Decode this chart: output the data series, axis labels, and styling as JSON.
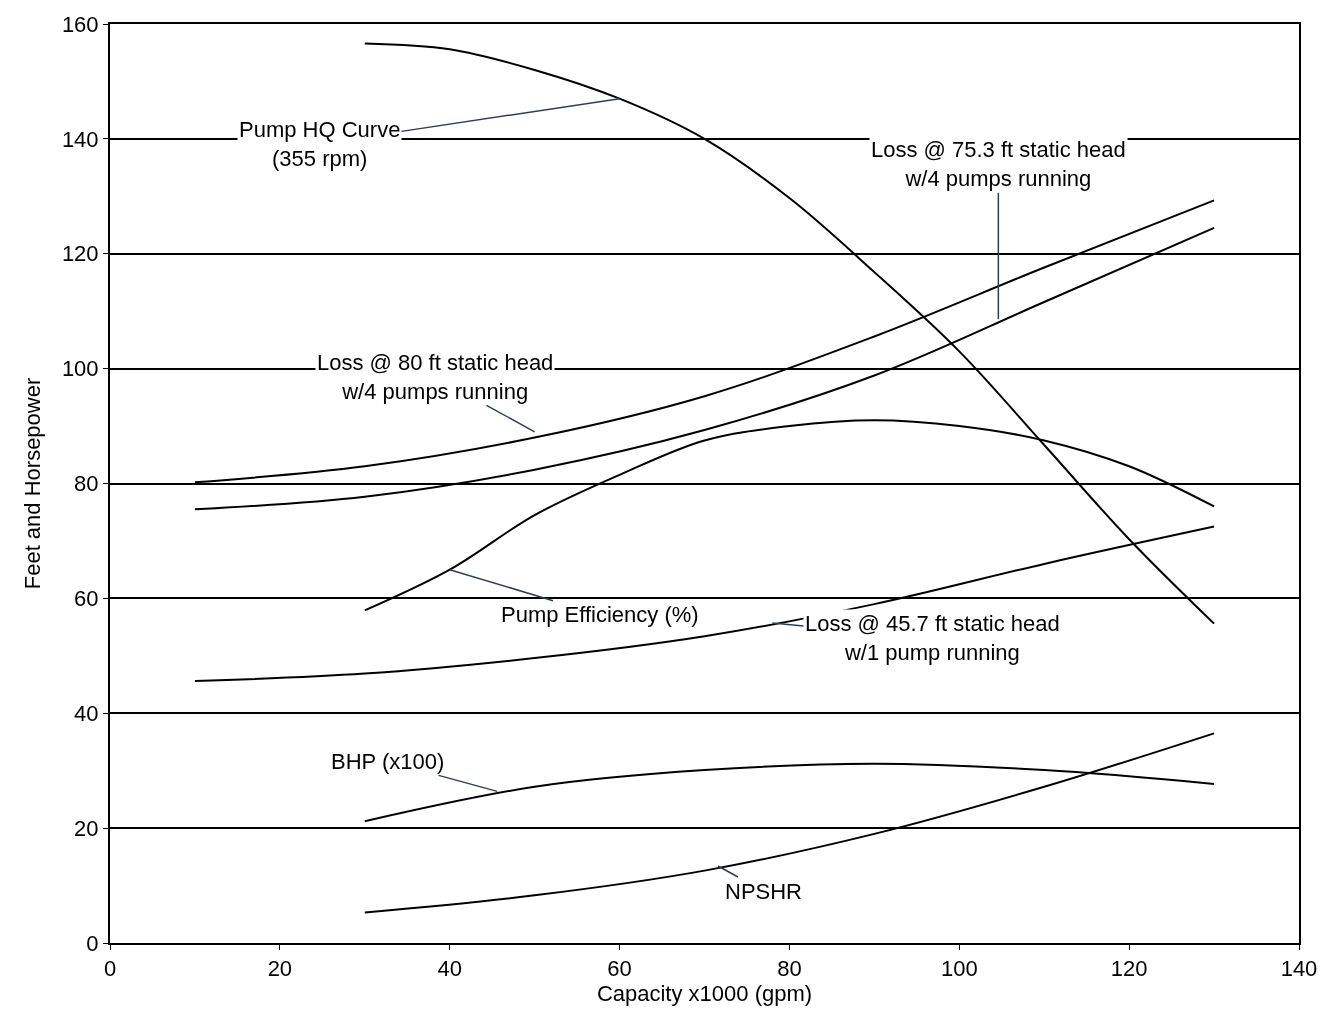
{
  "chart_data": {
    "type": "line",
    "xlabel": "Capacity x1000 (gpm)",
    "ylabel": "Feet and Horsepower",
    "xlim": [
      0,
      140
    ],
    "xticks": [
      0,
      20,
      40,
      60,
      80,
      100,
      120,
      140
    ],
    "ylim": [
      0,
      160
    ],
    "yticks": [
      0,
      20,
      40,
      60,
      80,
      100,
      120,
      140,
      160
    ],
    "grid": "y",
    "legend": false,
    "marker": "none",
    "line_style": "solid",
    "series": [
      {
        "color": "#000000",
        "x": [
          30,
          40,
          50,
          60,
          70,
          80,
          90,
          100,
          110,
          120,
          130
        ],
        "values": [
          156.6,
          155.6,
          152,
          147,
          140,
          129.7,
          116.8,
          103,
          86.7,
          70.3,
          55.6
        ]
      },
      {
        "color": "#000000",
        "x": [
          10,
          30,
          50,
          70,
          90,
          110,
          130
        ],
        "values": [
          80.2,
          83,
          88,
          95.2,
          105.6,
          117.6,
          129.3
        ]
      },
      {
        "color": "#000000",
        "x": [
          10,
          30,
          50,
          70,
          90,
          110,
          130
        ],
        "values": [
          75.5,
          77.7,
          82.4,
          89.3,
          98.8,
          111.6,
          124.5
        ]
      },
      {
        "color": "#000000",
        "x": [
          30,
          40,
          50,
          60,
          70,
          80,
          90,
          100,
          110,
          120,
          130
        ],
        "values": [
          57.9,
          65,
          74.5,
          81.5,
          87.5,
          90,
          91,
          90,
          87.5,
          83,
          76
        ]
      },
      {
        "color": "#000000",
        "x": [
          10,
          30,
          50,
          70,
          90,
          110,
          130
        ],
        "values": [
          45.6,
          46.9,
          49.6,
          53.4,
          59,
          66,
          72.5
        ]
      },
      {
        "color": "#000000",
        "x": [
          30,
          50,
          70,
          90,
          110,
          130
        ],
        "values": [
          21.2,
          27.2,
          30.1,
          31.2,
          30.1,
          27.7
        ]
      },
      {
        "color": "#000000",
        "x": [
          30,
          50,
          70,
          90,
          110,
          130
        ],
        "values": [
          5.3,
          8.3,
          12.6,
          19,
          27.2,
          36.5
        ]
      }
    ],
    "annotations": [
      {
        "text": "Pump HQ Curve\n(355 rpm)",
        "x": 60,
        "y": 147
      },
      {
        "text": "Loss @ 75.3 ft static head\nw/4 pumps running",
        "x": 104.6,
        "y": 108.6
      },
      {
        "text": "Loss @ 80 ft static head\nw/4 pumps running",
        "x": 50,
        "y": 89
      },
      {
        "text": "Pump Efficiency (%)",
        "x": 40,
        "y": 65
      },
      {
        "text": "Loss @ 45.7 ft static head\nw/1 pump running",
        "x": 78,
        "y": 55.7
      },
      {
        "text": "BHP (x100)",
        "x": 45.6,
        "y": 26.4
      },
      {
        "text": "NPSHR",
        "x": 71.6,
        "y": 13.4
      }
    ]
  }
}
